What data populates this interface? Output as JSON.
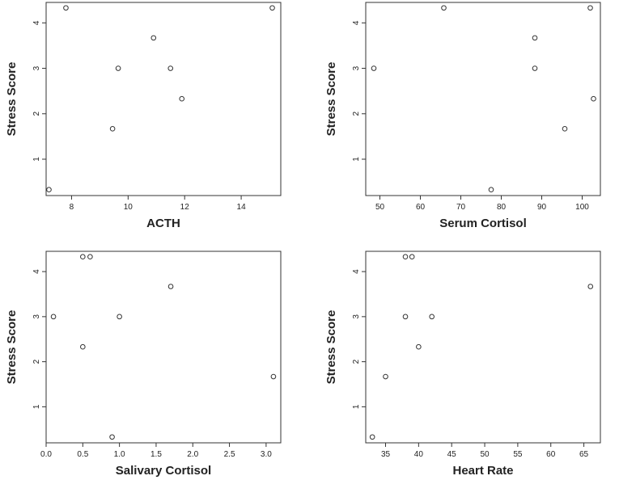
{
  "chart_data": [
    {
      "type": "scatter",
      "xlabel": "ACTH",
      "ylabel": "Stress Score",
      "xlim": [
        7.1,
        15.4
      ],
      "ylim": [
        0.2,
        4.45
      ],
      "xticks": [
        8,
        10,
        12,
        14
      ],
      "yticks": [
        1,
        2,
        3,
        4
      ],
      "xtick_labels": [
        "8",
        "10",
        "12",
        "14"
      ],
      "ytick_labels": [
        "1",
        "2",
        "3",
        "4"
      ],
      "points": [
        {
          "x": 7.2,
          "y": 0.33
        },
        {
          "x": 7.8,
          "y": 4.33
        },
        {
          "x": 9.45,
          "y": 1.67
        },
        {
          "x": 9.65,
          "y": 3.0
        },
        {
          "x": 10.9,
          "y": 3.67
        },
        {
          "x": 11.5,
          "y": 3.0
        },
        {
          "x": 11.9,
          "y": 2.33
        },
        {
          "x": 15.1,
          "y": 4.33
        }
      ]
    },
    {
      "type": "scatter",
      "xlabel": "Serum Cortisol",
      "ylabel": "Stress Score",
      "xlim": [
        46.5,
        104.5
      ],
      "ylim": [
        0.2,
        4.45
      ],
      "xticks": [
        50,
        60,
        70,
        80,
        90,
        100
      ],
      "yticks": [
        1,
        2,
        3,
        4
      ],
      "xtick_labels": [
        "50",
        "60",
        "70",
        "80",
        "90",
        "100"
      ],
      "ytick_labels": [
        "1",
        "2",
        "3",
        "4"
      ],
      "points": [
        {
          "x": 48.5,
          "y": 3.0
        },
        {
          "x": 65.8,
          "y": 4.33
        },
        {
          "x": 77.5,
          "y": 0.33
        },
        {
          "x": 88.3,
          "y": 3.67
        },
        {
          "x": 88.3,
          "y": 3.0
        },
        {
          "x": 95.7,
          "y": 1.67
        },
        {
          "x": 102.0,
          "y": 4.33
        },
        {
          "x": 102.8,
          "y": 2.33
        }
      ]
    },
    {
      "type": "scatter",
      "xlabel": "Salivary Cortisol",
      "ylabel": "Stress Score",
      "xlim": [
        0.0,
        3.2
      ],
      "ylim": [
        0.2,
        4.45
      ],
      "xticks": [
        0.0,
        0.5,
        1.0,
        1.5,
        2.0,
        2.5,
        3.0
      ],
      "yticks": [
        1,
        2,
        3,
        4
      ],
      "xtick_labels": [
        "0.0",
        "0.5",
        "1.0",
        "1.5",
        "2.0",
        "2.5",
        "3.0"
      ],
      "ytick_labels": [
        "1",
        "2",
        "3",
        "4"
      ],
      "points": [
        {
          "x": 0.1,
          "y": 3.0
        },
        {
          "x": 0.5,
          "y": 4.33
        },
        {
          "x": 0.6,
          "y": 4.33
        },
        {
          "x": 0.5,
          "y": 2.33
        },
        {
          "x": 0.9,
          "y": 0.33
        },
        {
          "x": 1.0,
          "y": 3.0
        },
        {
          "x": 1.7,
          "y": 3.67
        },
        {
          "x": 3.1,
          "y": 1.67
        }
      ]
    },
    {
      "type": "scatter",
      "xlabel": "Heart Rate",
      "ylabel": "Stress Score",
      "xlim": [
        32.0,
        67.5
      ],
      "ylim": [
        0.2,
        4.45
      ],
      "xticks": [
        35,
        40,
        45,
        50,
        55,
        60,
        65
      ],
      "yticks": [
        1,
        2,
        3,
        4
      ],
      "xtick_labels": [
        "35",
        "40",
        "45",
        "50",
        "55",
        "60",
        "65"
      ],
      "ytick_labels": [
        "1",
        "2",
        "3",
        "4"
      ],
      "points": [
        {
          "x": 33,
          "y": 0.33
        },
        {
          "x": 35,
          "y": 1.67
        },
        {
          "x": 38,
          "y": 3.0
        },
        {
          "x": 38,
          "y": 4.33
        },
        {
          "x": 39,
          "y": 4.33
        },
        {
          "x": 40,
          "y": 2.33
        },
        {
          "x": 42,
          "y": 3.0
        },
        {
          "x": 66,
          "y": 3.67
        }
      ]
    }
  ]
}
